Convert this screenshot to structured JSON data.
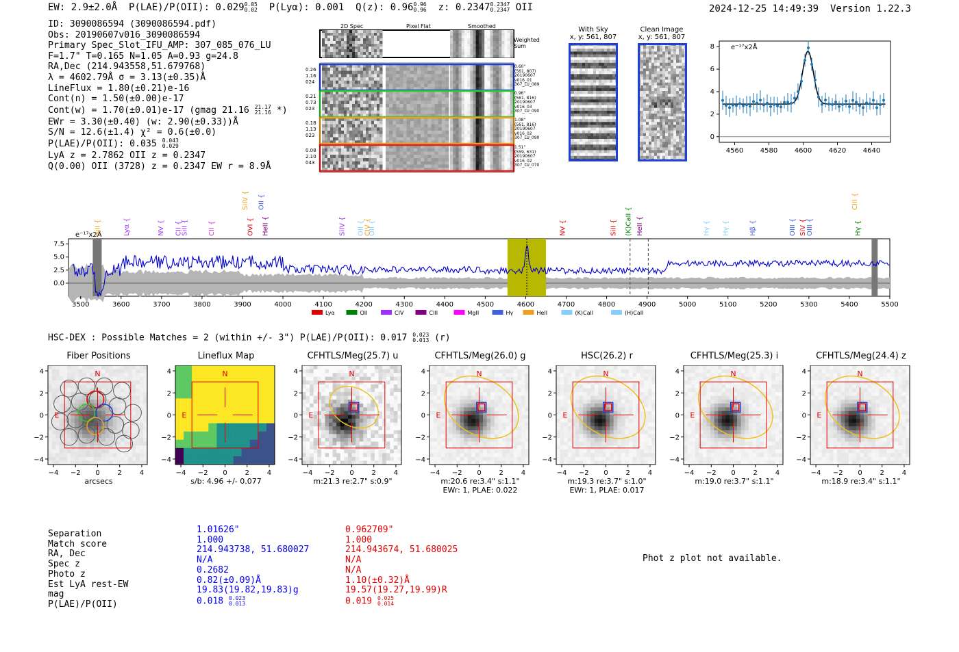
{
  "header": {
    "ew": "EW: 2.9±2.0Å",
    "plae_label": "P(LAE)/P(OII): 0.029",
    "plae_hi": "0.05",
    "plae_lo": "0.02",
    "plya": "P(Lyα): 0.001",
    "qz_label": "Q(z): 0.96",
    "qz_hi": "0.96",
    "qz_lo": "0.96",
    "z_label": "z: 0.2347",
    "z_hi": "0.2347",
    "z_lo": "0.2347",
    "z_line": "OII",
    "timestamp": "2024-12-25 14:49:39",
    "version": "Version 1.22.3"
  },
  "info": {
    "id": "ID: 3090086594 (3090086594.pdf)",
    "obs": "Obs: 20190607v016_3090086594",
    "primary": "Primary Spec_Slot_IFU_AMP: 307_085_076_LU",
    "params": "F=1.7\"  T=0.165  N=1.05  A=0.93  g=24.8",
    "radec": "RA,Dec (214.943558,51.679768)",
    "lambda": "λ = 4602.79Å  σ = 3.13(±0.35)Å",
    "lineflux": "LineFlux = 1.80(±0.21)e-16",
    "contn": "Cont(n) = 1.50(±0.00)e-17",
    "contw": "Cont(w) = 1.70(±0.01)e-17 (gmag 21.16",
    "contw_hi": "21.17",
    "contw_lo": "21.16",
    "contw_end": "*)",
    "ewr": "EWr = 3.30(±0.40) (w: 2.90(±0.33))Å",
    "sn": "S/N = 12.6(±1.4)  χ² = 0.6(±0.0)",
    "plae": "P(LAE)/P(OII): 0.035",
    "plae_hi": "0.043",
    "plae_lo": "0.029",
    "lya": "LyA z = 2.7862  OII z = 0.2347",
    "q": "Q(0.00) OII (3728) z = 0.2347  EW r = 8.9Å"
  },
  "spec2d": {
    "col_headers": [
      "2D Spec",
      "Pixel Flat",
      "Smoothed"
    ],
    "weighted": "Weighted Sum",
    "rows": [
      {
        "left": [
          "0.26",
          "1.16",
          "024"
        ],
        "right": [
          "0.60\"",
          "(561, 807)",
          "20190607",
          "v016_01",
          "307_LU_089"
        ],
        "color": "#1f3fd6"
      },
      {
        "left": [
          "0.21",
          "0.73",
          "023"
        ],
        "right": [
          "0.96\"",
          "(561, 816)",
          "20190607",
          "v016_03",
          "307_LU_090"
        ],
        "color": "#2ecc2e"
      },
      {
        "left": [
          "0.18",
          "1.13",
          "023"
        ],
        "right": [
          "1.08\"",
          "(561, 816)",
          "20190607",
          "v016_02",
          "307_LU_090"
        ],
        "color": "#f0a020"
      },
      {
        "left": [
          "0.08",
          "2.10",
          "043"
        ],
        "right": [
          "1.51\"",
          "(559, 631)",
          "20190607",
          "v016_02",
          "307_LU_070"
        ],
        "color": "#e02020"
      }
    ]
  },
  "sky": {
    "with_sky_title": "With Sky",
    "with_sky_xy": "x, y: 561, 807",
    "clean_title": "Clean Image",
    "clean_xy": "x, y: 561, 807"
  },
  "lineplot": {
    "unit": "e⁻¹⁷x2Å",
    "x_ticks": [
      "4560",
      "4580",
      "4600",
      "4620",
      "4640"
    ],
    "y_ticks": [
      "0",
      "2",
      "4",
      "6",
      "8"
    ]
  },
  "fullspec": {
    "unit": "e⁻¹⁷x2Å",
    "x_ticks": [
      "3500",
      "3600",
      "3700",
      "3800",
      "3900",
      "4000",
      "4100",
      "4200",
      "4300",
      "4400",
      "4500",
      "4600",
      "4700",
      "4800",
      "4900",
      "5000",
      "5100",
      "5200",
      "5300",
      "5400",
      "5500"
    ],
    "y_ticks": [
      "0.0",
      "2.5",
      "5.0",
      "7.5"
    ],
    "lines_low": [
      {
        "label": "SiII",
        "x": 3540,
        "color": "#f0a020"
      },
      {
        "label": "Lyα",
        "x": 3612,
        "color": "#9b30ff"
      },
      {
        "label": "NV",
        "x": 3697,
        "color": "#9b30ff"
      },
      {
        "label": "CII",
        "x": 3740,
        "color": "#9b30ff"
      },
      {
        "label": "SiII",
        "x": 3755,
        "color": "#9b30ff"
      },
      {
        "label": "CII",
        "x": 3822,
        "color": "#d030d0"
      },
      {
        "label": "OVI",
        "x": 3918,
        "color": "#e00000"
      },
      {
        "label": "HeII",
        "x": 3955,
        "color": "#800080"
      },
      {
        "label": "SiIV",
        "x": 4145,
        "color": "#9b30ff"
      },
      {
        "label": "OII",
        "x": 4190,
        "color": "#87cefa"
      },
      {
        "label": "CIV",
        "x": 4207,
        "color": "#f0a020"
      },
      {
        "label": "OII",
        "x": 4218,
        "color": "#87cefa"
      },
      {
        "label": "NV",
        "x": 4690,
        "color": "#e00000"
      },
      {
        "label": "SiII",
        "x": 4815,
        "color": "#e00000"
      },
      {
        "label": "(K)CaII",
        "x": 4852,
        "color": "#008000"
      },
      {
        "label": "HeII",
        "x": 4880,
        "color": "#800080"
      },
      {
        "label": "Hγ",
        "x": 5045,
        "color": "#87cefa"
      },
      {
        "label": "Hγ",
        "x": 5093,
        "color": "#87cefa"
      },
      {
        "label": "Hβ",
        "x": 5160,
        "color": "#4060e0"
      },
      {
        "label": "OIII",
        "x": 5258,
        "color": "#4060e0"
      },
      {
        "label": "SiV",
        "x": 5283,
        "color": "#e00000"
      },
      {
        "label": "OIII",
        "x": 5300,
        "color": "#4060e0"
      },
      {
        "label": "Hγ",
        "x": 5420,
        "color": "#008000"
      }
    ],
    "lines_high": [
      {
        "label": "SiIV",
        "x": 3905,
        "color": "#f0a020"
      },
      {
        "label": "OII",
        "x": 3945,
        "color": "#4060e0"
      },
      {
        "label": "CIII",
        "x": 5412,
        "color": "#f0a020"
      }
    ],
    "legend": [
      {
        "label": "Lyα",
        "color": "#e00000"
      },
      {
        "label": "OII",
        "color": "#008000"
      },
      {
        "label": "CIV",
        "color": "#9b30ff"
      },
      {
        "label": "CIII",
        "color": "#800080"
      },
      {
        "label": "MgII",
        "color": "#ff00ff"
      },
      {
        "label": "Hγ",
        "color": "#4060e0"
      },
      {
        "label": "HeII",
        "color": "#f0a020"
      },
      {
        "label": "(K)CaII",
        "color": "#87cefa"
      },
      {
        "label": "(H)CaII",
        "color": "#87cefa"
      }
    ]
  },
  "hsc": {
    "title_pre": "HSC-DEX : Possible Matches = 2 (within +/- 3\")  P(LAE)/P(OII): 0.017",
    "title_hi": "0.023",
    "title_lo": "0.013",
    "title_end": "(r)"
  },
  "thumbs": [
    {
      "title": "Fiber Positions",
      "cap1": "arcsecs",
      "cap2": ""
    },
    {
      "title": "Lineflux Map",
      "cap1": "s/b: 4.96 +/- 0.077",
      "cap2": ""
    },
    {
      "title": "CFHTLS/Meg(25.7) u",
      "cap1": "m:21.3  re:2.7\"  s:0.9\"",
      "cap2": ""
    },
    {
      "title": "CFHTLS/Meg(26.0) g",
      "cap1": "m:20.6  re:3.4\"  s:1.1\"",
      "cap2": "EWr: 1, PLAE: 0.022"
    },
    {
      "title": "HSC(26.2) r",
      "cap1": "m:19.3  re:3.7\"  s:1.0\"",
      "cap2": "EWr: 1, PLAE: 0.017"
    },
    {
      "title": "CFHTLS/Meg(25.3) i",
      "cap1": "m:19.0  re:3.7\"  s:1.1\"",
      "cap2": ""
    },
    {
      "title": "CFHTLS/Meg(24.4) z",
      "cap1": "m:18.9  re:3.4\"  s:1.1\"",
      "cap2": ""
    }
  ],
  "thumb_axis": {
    "ticks": [
      "−4",
      "−2",
      "0",
      "2",
      "4"
    ],
    "n": "N",
    "e": "E"
  },
  "matches": {
    "labels": [
      "Separation",
      "Match score",
      "RA, Dec",
      "Spec z",
      "Photo z",
      "Est LyA rest-EW",
      "mag",
      "P(LAE)/P(OII)"
    ],
    "blue": [
      "1.01626\"",
      "1.000",
      "214.943738, 51.680027",
      "N/A",
      "0.2682",
      "0.82(±0.09)Å",
      "19.83(19.82,19.83)g",
      "0.018"
    ],
    "blue_hi": "0.023",
    "blue_lo": "0.013",
    "red": [
      "0.962709\"",
      "1.000",
      "214.943674, 51.680025",
      "N/A",
      "N/A",
      "1.10(±0.32)Å",
      "19.57(19.27,19.99)R",
      "0.019"
    ],
    "red_hi": "0.025",
    "red_lo": "0.014",
    "photz_note": "Phot z plot not available."
  }
}
